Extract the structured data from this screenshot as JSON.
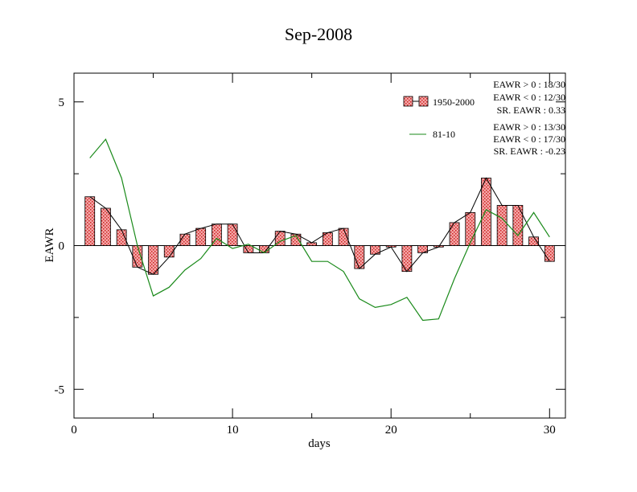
{
  "chart_data": {
    "type": "bar",
    "title": "Sep-2008",
    "xlabel": "days",
    "ylabel": "EAWR",
    "xlim": [
      0,
      31
    ],
    "ylim": [
      -6,
      6
    ],
    "x_ticks": [
      {
        "value": 0,
        "label": "0"
      },
      {
        "value": 10,
        "label": "10"
      },
      {
        "value": 20,
        "label": "20"
      },
      {
        "value": 30,
        "label": "30"
      }
    ],
    "y_ticks": [
      {
        "value": 5,
        "label": "5"
      },
      {
        "value": 0,
        "label": "0"
      },
      {
        "value": -5,
        "label": "-5"
      }
    ],
    "grid": false,
    "legend_position": "top-right",
    "colors": {
      "bar_fill": "#f4a6a6",
      "bar_hatch": "#cc2222",
      "bar_line": "#000000",
      "climatology_line": "#1a8a1a",
      "axis": "#000000"
    },
    "series": [
      {
        "name": "1950-2000",
        "style": "hatched bars with line",
        "x": [
          1,
          2,
          3,
          4,
          5,
          6,
          7,
          8,
          9,
          10,
          11,
          12,
          13,
          14,
          15,
          16,
          17,
          18,
          19,
          20,
          21,
          22,
          23,
          24,
          25,
          26,
          27,
          28,
          29,
          30
        ],
        "values": [
          1.7,
          1.3,
          0.55,
          -0.75,
          -1.0,
          -0.4,
          0.4,
          0.6,
          0.75,
          0.75,
          -0.25,
          -0.25,
          0.5,
          0.4,
          0.1,
          0.45,
          0.6,
          -0.8,
          -0.3,
          -0.05,
          -0.9,
          -0.25,
          -0.05,
          0.8,
          1.15,
          2.35,
          1.4,
          1.4,
          0.3,
          -0.55
        ]
      },
      {
        "name": "81-10",
        "style": "line",
        "x": [
          1,
          2,
          3,
          4,
          5,
          6,
          7,
          8,
          9,
          10,
          11,
          12,
          13,
          14,
          15,
          16,
          17,
          18,
          19,
          20,
          21,
          22,
          23,
          24,
          25,
          26,
          27,
          28,
          29,
          30
        ],
        "values": [
          3.05,
          3.7,
          2.35,
          0.0,
          -1.75,
          -1.45,
          -0.85,
          -0.45,
          0.25,
          -0.1,
          0.05,
          -0.25,
          0.15,
          0.35,
          -0.55,
          -0.55,
          -0.9,
          -1.85,
          -2.15,
          -2.05,
          -1.8,
          -2.6,
          -2.55,
          -1.15,
          0.1,
          1.25,
          0.95,
          0.35,
          1.15,
          0.3
        ]
      }
    ],
    "stats": [
      {
        "group": "1950-2000",
        "lines": [
          "EAWR > 0 : 18/30",
          "EAWR < 0 : 12/30",
          "SR. EAWR :  0.33"
        ]
      },
      {
        "group": "81-10",
        "lines": [
          "EAWR > 0 : 13/30",
          "EAWR < 0 : 17/30",
          "SR. EAWR : -0.23"
        ]
      }
    ]
  }
}
